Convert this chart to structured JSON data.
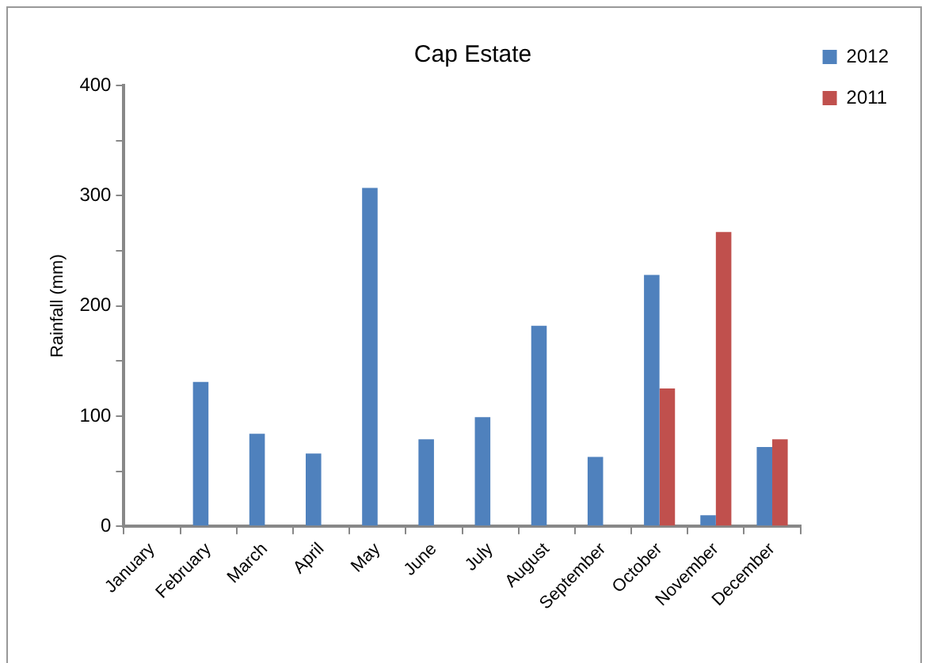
{
  "chart_data": {
    "type": "bar",
    "title": "Cap Estate",
    "ylabel": "Rainfall (mm)",
    "categories": [
      "January",
      "February",
      "March",
      "April",
      "May",
      "June",
      "July",
      "August",
      "September",
      "October",
      "November",
      "December"
    ],
    "series": [
      {
        "name": "2012",
        "color": "#4f81bd",
        "values": [
          null,
          131,
          84,
          66,
          307,
          79,
          99,
          182,
          63,
          228,
          10,
          72
        ]
      },
      {
        "name": "2011",
        "color": "#c0504d",
        "values": [
          null,
          null,
          null,
          null,
          null,
          null,
          null,
          null,
          null,
          125,
          267,
          79
        ]
      }
    ],
    "ylim": [
      0,
      400
    ],
    "yticks": [
      0,
      {
        "value": 50,
        "label": null
      },
      100,
      {
        "value": 150,
        "label": null
      },
      200,
      {
        "value": 250,
        "label": null
      },
      300,
      {
        "value": 350,
        "label": null
      },
      400
    ],
    "grid": false,
    "legend": "top right"
  }
}
